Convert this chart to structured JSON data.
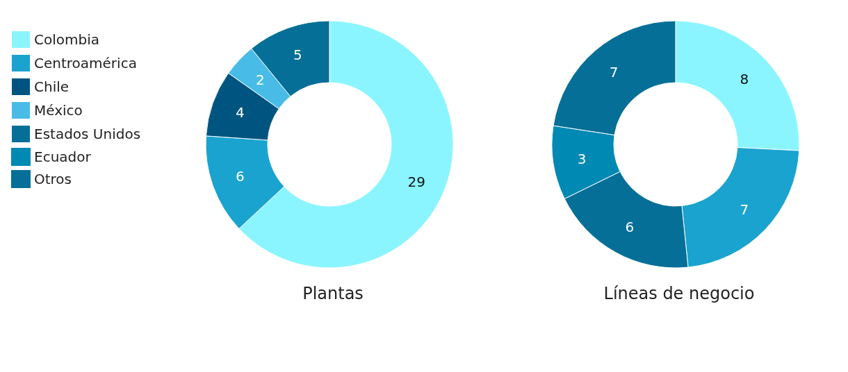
{
  "chart_data": {
    "type": "donut",
    "categories": [
      "Colombia",
      "Centroamérica",
      "Chile",
      "México",
      "Estados Unidos",
      "Ecuador",
      "Otros"
    ],
    "colors": [
      "#8af5ff",
      "#1aa3cf",
      "#005580",
      "#48bce6",
      "#066f97",
      "#0089b3",
      "#066f97"
    ],
    "series": [
      {
        "name": "Plantas",
        "values": [
          29,
          6,
          4,
          2,
          5,
          0,
          0
        ]
      },
      {
        "name": "Líneas de negocio",
        "values": [
          8,
          7,
          0,
          0,
          6,
          3,
          7
        ]
      }
    ],
    "data_labels": true,
    "legend": "left"
  }
}
